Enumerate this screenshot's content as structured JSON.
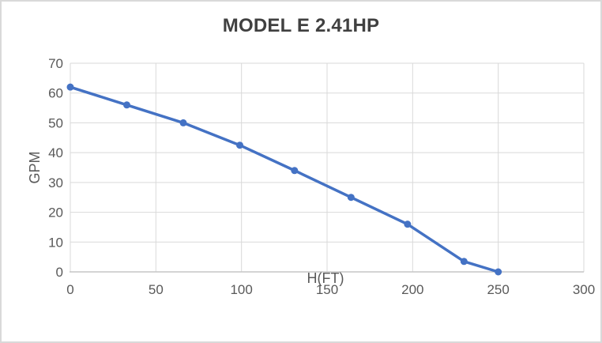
{
  "chart_data": {
    "type": "line",
    "title": "MODEL E 2.41HP",
    "xlabel": "H(FT)",
    "ylabel": "GPM",
    "x": [
      0,
      33,
      66,
      99,
      131,
      164,
      197,
      230,
      250
    ],
    "values": [
      62,
      56,
      50,
      42.5,
      34,
      25,
      16,
      3.5,
      0
    ],
    "xlim": [
      0,
      300
    ],
    "ylim": [
      0,
      70
    ],
    "xticks": [
      0,
      50,
      100,
      150,
      200,
      250,
      300
    ],
    "yticks": [
      0,
      10,
      20,
      30,
      40,
      50,
      60,
      70
    ],
    "grid": true,
    "legend": false,
    "marker": "circle",
    "colors": {
      "series": "#4472c4",
      "gridline": "#d9d9d9",
      "axis_line": "#c6c6c6",
      "title": "#404040",
      "tick_text": "#595959",
      "frame_border": "#d9d9d9",
      "background": "#ffffff"
    }
  }
}
